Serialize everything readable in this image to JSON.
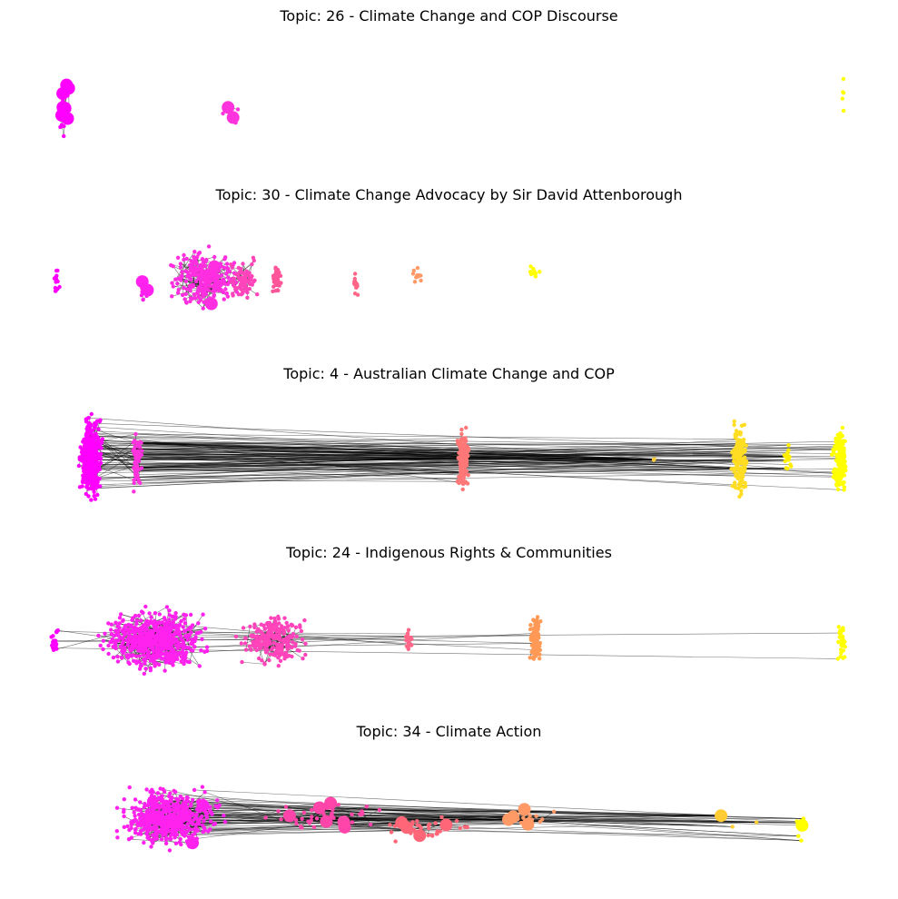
{
  "chart_data": [
    {
      "type": "network",
      "title": "Topic: 26 - Climate Change and COP Discourse",
      "grid": false,
      "axes": "none",
      "clusters": [
        {
          "color": "#ff00ff",
          "nodes": 40,
          "hubs": 8,
          "spread": 0.1,
          "edges": 20
        },
        {
          "color": "#ff33dd",
          "nodes": 8,
          "hubs": 2,
          "spread": 0.5,
          "edges": 4
        },
        {
          "color": "#ffff00",
          "nodes": 5,
          "hubs": 0,
          "spread": 0.3,
          "edges": 0
        }
      ],
      "long_edges": 0
    },
    {
      "type": "network",
      "title": "Topic: 30 - Climate Change Advocacy by Sir David Attenborough",
      "grid": false,
      "axes": "none",
      "clusters": [
        {
          "color": "#ff00ff",
          "nodes": 14,
          "hubs": 0,
          "edges": 0
        },
        {
          "color": "#ff22ee",
          "nodes": 22,
          "hubs": 2,
          "edges": 10
        },
        {
          "color": "#ff2ee0",
          "nodes": 260,
          "hubs": 2,
          "edges": 140
        },
        {
          "color": "#ff44bb",
          "nodes": 70,
          "hubs": 0,
          "edges": 40
        },
        {
          "color": "#ff5599",
          "nodes": 40,
          "hubs": 0,
          "edges": 10
        },
        {
          "color": "#ff6688",
          "nodes": 12,
          "hubs": 0,
          "edges": 0
        },
        {
          "color": "#ff9966",
          "nodes": 10,
          "hubs": 0,
          "edges": 0
        },
        {
          "color": "#ffff00",
          "nodes": 10,
          "hubs": 0,
          "edges": 0
        }
      ],
      "long_edges": 0
    },
    {
      "type": "network",
      "title": "Topic: 4 - Australian Climate Change and COP",
      "grid": false,
      "axes": "none",
      "clusters": [
        {
          "color": "#ff00ff",
          "nodes": 420,
          "hubs": 0,
          "edges": 80
        },
        {
          "color": "#ff33dd",
          "nodes": 70,
          "hubs": 0,
          "edges": 20
        },
        {
          "color": "#ff7777",
          "nodes": 150,
          "hubs": 0,
          "edges": 20
        },
        {
          "color": "#ffcc33",
          "nodes": 2,
          "hubs": 0,
          "edges": 0
        },
        {
          "color": "#ffdd22",
          "nodes": 160,
          "hubs": 0,
          "edges": 0
        },
        {
          "color": "#ffee00",
          "nodes": 16,
          "hubs": 0,
          "edges": 0
        },
        {
          "color": "#ffff00",
          "nodes": 140,
          "hubs": 0,
          "edges": 0
        }
      ],
      "long_edges": 170
    },
    {
      "type": "network",
      "title": "Topic: 24 - Indigenous Rights & Communities",
      "grid": false,
      "axes": "none",
      "clusters": [
        {
          "color": "#ff00ff",
          "nodes": 24,
          "hubs": 0,
          "edges": 0
        },
        {
          "color": "#ff22ee",
          "nodes": 600,
          "hubs": 1,
          "edges": 260
        },
        {
          "color": "#ff44bb",
          "nodes": 220,
          "hubs": 0,
          "edges": 100
        },
        {
          "color": "#ff6688",
          "nodes": 18,
          "hubs": 0,
          "edges": 4
        },
        {
          "color": "#ff9955",
          "nodes": 100,
          "hubs": 0,
          "edges": 10
        },
        {
          "color": "#ffff00",
          "nodes": 30,
          "hubs": 0,
          "edges": 0
        }
      ],
      "long_edges": 20
    },
    {
      "type": "network",
      "title": "Topic: 34 - Climate Action",
      "grid": false,
      "axes": "none",
      "clusters": [
        {
          "color": "#ff22ee",
          "nodes": 500,
          "hubs": 6,
          "edges": 200
        },
        {
          "color": "#ff44aa",
          "nodes": 60,
          "hubs": 6,
          "edges": 30
        },
        {
          "color": "#ff6677",
          "nodes": 40,
          "hubs": 4,
          "edges": 10
        },
        {
          "color": "#ff9966",
          "nodes": 14,
          "hubs": 5,
          "edges": 4
        },
        {
          "color": "#ffcc33",
          "nodes": 4,
          "hubs": 1,
          "edges": 0
        },
        {
          "color": "#ffff00",
          "nodes": 8,
          "hubs": 1,
          "edges": 0
        }
      ],
      "long_edges": 120
    }
  ]
}
